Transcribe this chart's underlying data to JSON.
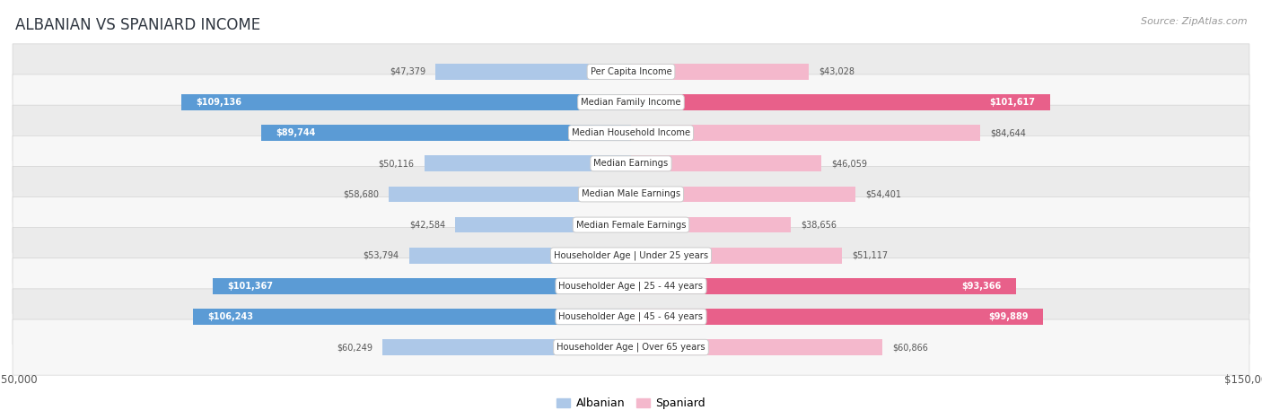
{
  "title": "ALBANIAN VS SPANIARD INCOME",
  "source": "Source: ZipAtlas.com",
  "categories": [
    "Per Capita Income",
    "Median Family Income",
    "Median Household Income",
    "Median Earnings",
    "Median Male Earnings",
    "Median Female Earnings",
    "Householder Age | Under 25 years",
    "Householder Age | 25 - 44 years",
    "Householder Age | 45 - 64 years",
    "Householder Age | Over 65 years"
  ],
  "albanian": [
    47379,
    109136,
    89744,
    50116,
    58680,
    42584,
    53794,
    101367,
    106243,
    60249
  ],
  "spaniard": [
    43028,
    101617,
    84644,
    46059,
    54401,
    38656,
    51117,
    93366,
    99889,
    60866
  ],
  "albanian_labels": [
    "$47,379",
    "$109,136",
    "$89,744",
    "$50,116",
    "$58,680",
    "$42,584",
    "$53,794",
    "$101,367",
    "$106,243",
    "$60,249"
  ],
  "spaniard_labels": [
    "$43,028",
    "$101,617",
    "$84,644",
    "$46,059",
    "$54,401",
    "$38,656",
    "$51,117",
    "$93,366",
    "$99,889",
    "$60,866"
  ],
  "albanian_color_light": "#adc8e8",
  "albanian_color_dark": "#5b9bd5",
  "spaniard_color_light": "#f4b8cc",
  "spaniard_color_dark": "#e8608a",
  "max_val": 150000,
  "bg_row_even": "#ebebeb",
  "bg_row_odd": "#f7f7f7",
  "title_color": "#2f3640",
  "source_color": "#999999",
  "label_dark": "#555555",
  "label_white": "#ffffff",
  "albanian_dark_threshold": 85000,
  "spaniard_dark_threshold": 85000
}
